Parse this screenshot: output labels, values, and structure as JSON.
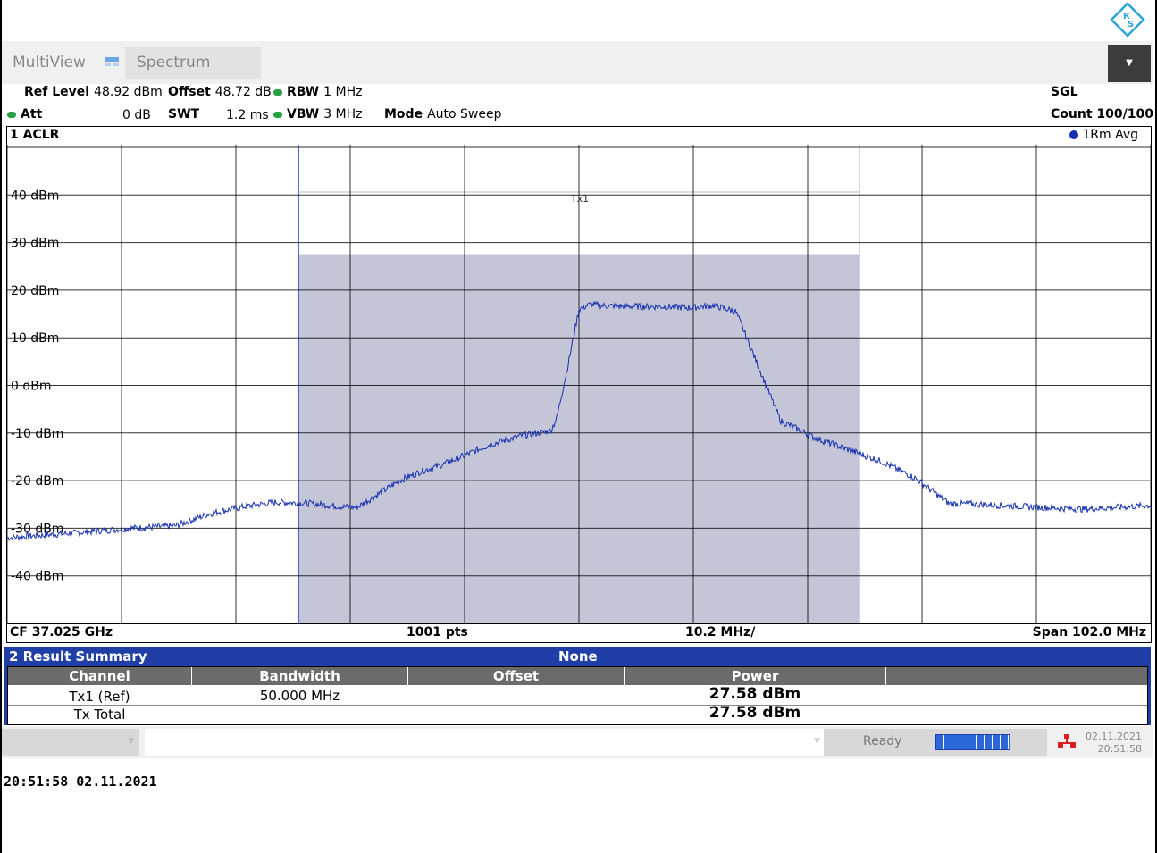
{
  "tabs": {
    "multiview": "MultiView",
    "spectrum": "Spectrum"
  },
  "params": {
    "ref_level_label": "Ref Level",
    "ref_level_value": "48.92 dBm",
    "offset_label": "Offset",
    "offset_value": "48.72 dB",
    "rbw_label": "RBW",
    "rbw_value": "1 MHz",
    "att_label": "Att",
    "att_value": "0 dB",
    "swt_label": "SWT",
    "swt_value": "1.2 ms",
    "vbw_label": "VBW",
    "vbw_value": "3 MHz",
    "mode_label": "Mode",
    "mode_value": "Auto Sweep",
    "sgl": "SGL",
    "count": "Count 100/100"
  },
  "diagram": {
    "title": "1 ACLR",
    "trace_label": "1Rm Avg",
    "channel_label": "Tx1",
    "y_labels": [
      "40 dBm",
      "30 dBm",
      "20 dBm",
      "10 dBm",
      "0 dBm",
      "-10 dBm",
      "-20 dBm",
      "-30 dBm",
      "-40 dBm"
    ],
    "cf": "CF 37.025 GHz",
    "pts": "1001 pts",
    "div": "10.2 MHz/",
    "span": "Span 102.0 MHz"
  },
  "chart_data": {
    "type": "line",
    "xlabel": "",
    "ylabel": "",
    "x_units": "MHz offset from CF",
    "xlim": [
      -51,
      51
    ],
    "ylim": [
      -50,
      50
    ],
    "channel_band_mhz": [
      -25,
      25
    ],
    "channel_power_level_dbm": 27.58,
    "series": [
      {
        "x": [
          -51,
          -45,
          -40,
          -36,
          -33,
          -30,
          -27,
          -24,
          -21,
          -19.8,
          -18,
          -16,
          -14,
          -12,
          -10,
          -8,
          -5,
          -2.5,
          -2,
          -1,
          0,
          1,
          2,
          2.5,
          5,
          8,
          10,
          12,
          14,
          16,
          18,
          19.8,
          21,
          24,
          27,
          30,
          33,
          36,
          40,
          45,
          51
        ],
        "y": [
          -32,
          -31,
          -30,
          -29.5,
          -27,
          -25.5,
          -24.5,
          -24.8,
          -25.5,
          -25.6,
          -23,
          -20,
          -18,
          -16.5,
          -14.5,
          -12.5,
          -10.5,
          -9.5,
          -7,
          4,
          16,
          17,
          16.8,
          16.7,
          16.6,
          16.5,
          16.3,
          16.8,
          15.5,
          4,
          -7.5,
          -9.5,
          -11,
          -13.5,
          -16,
          -19.5,
          -24.8,
          -25,
          -25.5,
          -26,
          -25.2
        ]
      }
    ]
  },
  "result_summary": {
    "title": "2 Result Summary",
    "mode": "None",
    "headers": [
      "Channel",
      "Bandwidth",
      "Offset",
      "Power"
    ],
    "rows": [
      {
        "channel": "Tx1 (Ref)",
        "bandwidth": "50.000 MHz",
        "offset": "",
        "power": "27.58 dBm"
      },
      {
        "channel": "Tx Total",
        "bandwidth": "",
        "offset": "",
        "power": "27.58 dBm"
      }
    ]
  },
  "status": {
    "ready": "Ready",
    "date": "02.11.2021",
    "time": "20:51:58"
  },
  "timestamp": "20:51:58  02.11.2021",
  "colors": {
    "trace": "#1530b0",
    "channel_fill": "#c5c5d8",
    "panel": "#1f3fa6",
    "status_green": "#26a044"
  }
}
